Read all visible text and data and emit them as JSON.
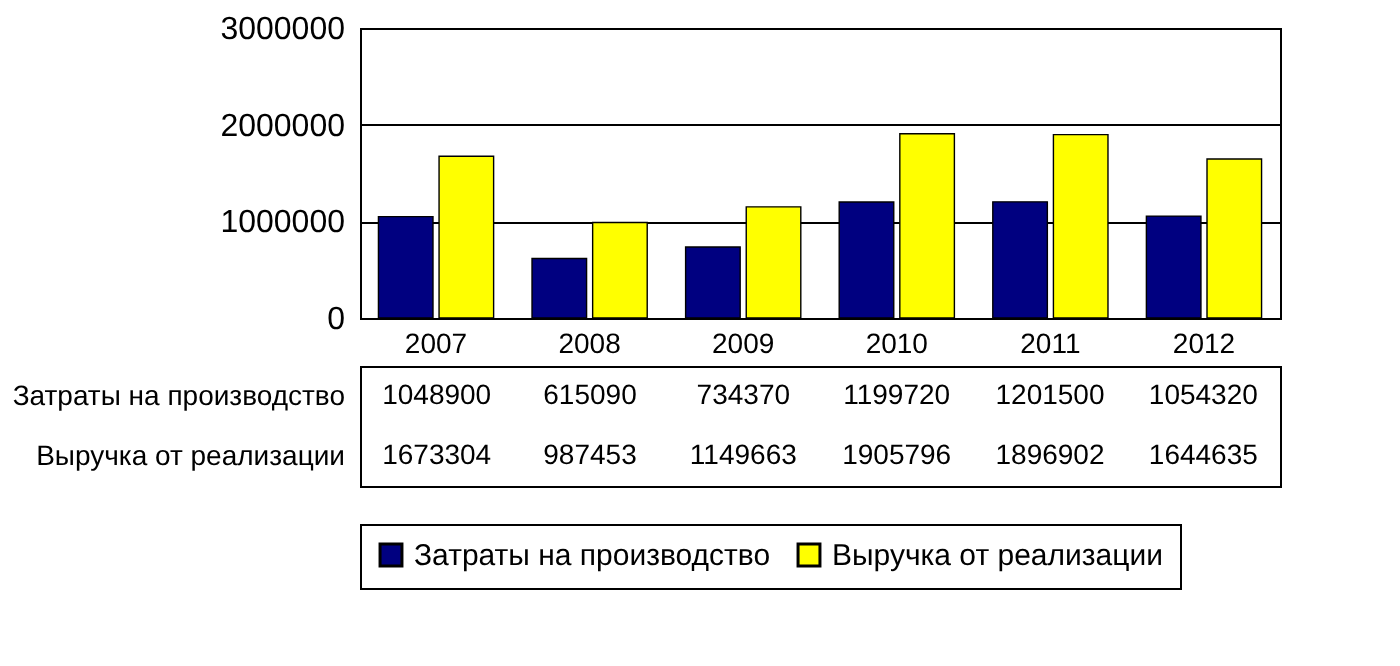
{
  "chart_data": {
    "type": "bar",
    "categories": [
      "2007",
      "2008",
      "2009",
      "2010",
      "2011",
      "2012"
    ],
    "series": [
      {
        "name": "Затраты на производство",
        "color": "#000080",
        "values": [
          1048900,
          615090,
          734370,
          1199720,
          1201500,
          1054320
        ]
      },
      {
        "name": "Выручка от реализации",
        "color": "#ffff00",
        "values": [
          1673304,
          987453,
          1149663,
          1905796,
          1896902,
          1644635
        ]
      }
    ],
    "ylim": [
      0,
      3000000
    ],
    "yticks": [
      0,
      1000000,
      2000000,
      3000000
    ],
    "grid": "y",
    "legend": "bottom",
    "data_labels": true
  }
}
